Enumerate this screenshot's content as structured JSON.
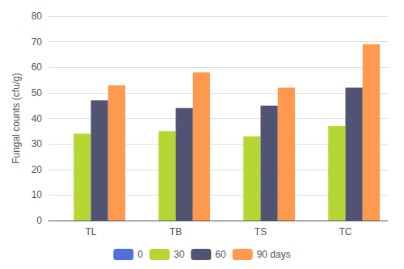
{
  "chart_data": {
    "type": "bar",
    "categories": [
      "TL",
      "TB",
      "TS",
      "TC"
    ],
    "series": [
      {
        "name": "0",
        "values": [
          0,
          0,
          0,
          0
        ]
      },
      {
        "name": "30",
        "values": [
          34,
          35,
          33,
          37
        ]
      },
      {
        "name": "60",
        "values": [
          47,
          44,
          45,
          52
        ]
      },
      {
        "name": "90 days",
        "values": [
          53,
          58,
          52,
          69
        ]
      }
    ],
    "ylabel": "Fungal counts (cfu/g)",
    "ylim": [
      0,
      80
    ],
    "yticks": [
      0,
      10,
      20,
      30,
      40,
      50,
      60,
      70,
      80
    ],
    "grid": true,
    "legend": "bottom"
  }
}
